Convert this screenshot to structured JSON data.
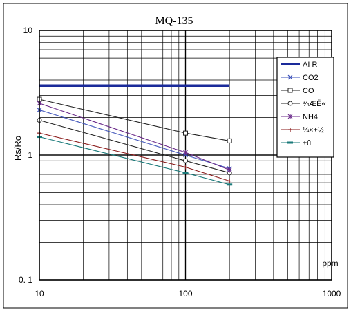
{
  "chart_data": {
    "type": "line",
    "title": "MQ-135",
    "xlabel": "ppm",
    "ylabel": "Rs/Ro",
    "x_scale": "log",
    "y_scale": "log",
    "xlim": [
      10,
      1000
    ],
    "ylim": [
      0.1,
      10
    ],
    "x_tick_labels": [
      "10",
      "100",
      "1000"
    ],
    "y_tick_labels": [
      "10",
      "1",
      "0. 1"
    ],
    "grid": true,
    "legend_position": "right",
    "series": [
      {
        "name": "AI R",
        "color": "#1a2a9a",
        "marker": "none",
        "x": [
          10,
          200
        ],
        "y": [
          3.6,
          3.6
        ]
      },
      {
        "name": "CO2",
        "color": "#3a4fb8",
        "marker": "x",
        "x": [
          10,
          100,
          200
        ],
        "y": [
          2.3,
          1.0,
          0.78
        ]
      },
      {
        "name": "CO",
        "color": "#222222",
        "marker": "square",
        "x": [
          10,
          100,
          200
        ],
        "y": [
          2.8,
          1.5,
          1.3
        ]
      },
      {
        "name": "¾ÆË«",
        "color": "#222222",
        "marker": "circle",
        "x": [
          10,
          100,
          200
        ],
        "y": [
          1.9,
          0.9,
          0.72
        ]
      },
      {
        "name": "NH4",
        "color": "#6a2a8a",
        "marker": "star",
        "x": [
          10,
          100,
          200
        ],
        "y": [
          2.6,
          1.05,
          0.76
        ]
      },
      {
        "name": "¼×±½",
        "color": "#8a1a1a",
        "marker": "plus",
        "x": [
          10,
          100,
          200
        ],
        "y": [
          1.5,
          0.8,
          0.62
        ]
      },
      {
        "name": "±û͹",
        "color": "#1a7a7a",
        "marker": "dash",
        "x": [
          10,
          100,
          200
        ],
        "y": [
          1.4,
          0.72,
          0.58
        ]
      }
    ]
  }
}
